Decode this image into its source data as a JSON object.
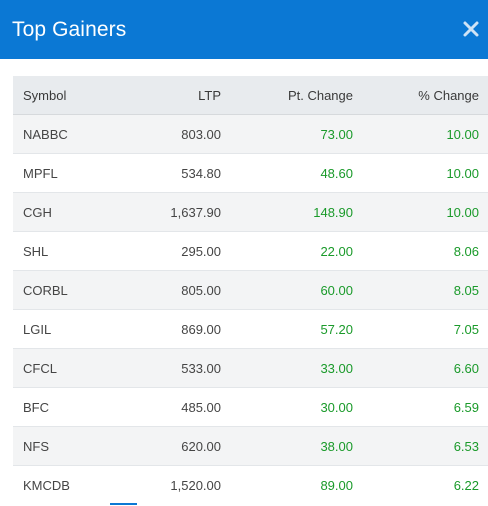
{
  "window": {
    "title": "Top Gainers",
    "close_icon": "close-icon"
  },
  "colors": {
    "header_bg": "#0b78d4",
    "positive": "#1a9a2a"
  },
  "table": {
    "headers": [
      "Symbol",
      "LTP",
      "Pt. Change",
      "% Change"
    ],
    "rows": [
      {
        "symbol": "NABBC",
        "ltp": "803.00",
        "pt_change": "73.00",
        "pct_change": "10.00"
      },
      {
        "symbol": "MPFL",
        "ltp": "534.80",
        "pt_change": "48.60",
        "pct_change": "10.00"
      },
      {
        "symbol": "CGH",
        "ltp": "1,637.90",
        "pt_change": "148.90",
        "pct_change": "10.00"
      },
      {
        "symbol": "SHL",
        "ltp": "295.00",
        "pt_change": "22.00",
        "pct_change": "8.06"
      },
      {
        "symbol": "CORBL",
        "ltp": "805.00",
        "pt_change": "60.00",
        "pct_change": "8.05"
      },
      {
        "symbol": "LGIL",
        "ltp": "869.00",
        "pt_change": "57.20",
        "pct_change": "7.05"
      },
      {
        "symbol": "CFCL",
        "ltp": "533.00",
        "pt_change": "33.00",
        "pct_change": "6.60"
      },
      {
        "symbol": "BFC",
        "ltp": "485.00",
        "pt_change": "30.00",
        "pct_change": "6.59"
      },
      {
        "symbol": "NFS",
        "ltp": "620.00",
        "pt_change": "38.00",
        "pct_change": "6.53"
      },
      {
        "symbol": "KMCDB",
        "ltp": "1,520.00",
        "pt_change": "89.00",
        "pct_change": "6.22"
      }
    ]
  }
}
